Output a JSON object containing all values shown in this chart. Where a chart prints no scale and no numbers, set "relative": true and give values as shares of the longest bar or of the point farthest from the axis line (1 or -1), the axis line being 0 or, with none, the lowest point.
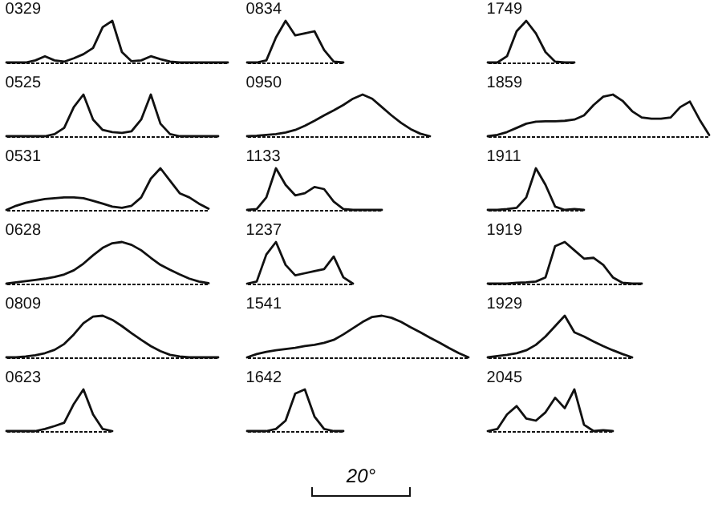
{
  "chart_data": [
    {
      "type": "line",
      "title": "0329",
      "relative": true,
      "tick_labels": false,
      "color": "#111111",
      "categories": [
        null,
        null,
        null,
        null,
        null,
        null,
        null,
        null,
        null,
        null,
        null,
        null,
        null,
        null,
        null,
        null,
        null,
        null,
        null,
        null,
        null,
        null,
        null,
        null
      ],
      "values": [
        0,
        0,
        0,
        0.05,
        0.15,
        0.05,
        0.02,
        0.1,
        0.2,
        0.35,
        0.85,
        1,
        0.25,
        0.03,
        0.05,
        0.15,
        0.08,
        0.02,
        0,
        0,
        0,
        0,
        0,
        0
      ]
    },
    {
      "type": "line",
      "title": "0834",
      "relative": true,
      "tick_labels": false,
      "color": "#111111",
      "categories": [
        null,
        null,
        null,
        null,
        null,
        null,
        null,
        null,
        null,
        null,
        null
      ],
      "values": [
        0,
        0,
        0.05,
        0.6,
        1,
        0.65,
        0.7,
        0.75,
        0.3,
        0.02,
        0
      ]
    },
    {
      "type": "line",
      "title": "1749",
      "relative": true,
      "tick_labels": false,
      "color": "#111111",
      "categories": [
        null,
        null,
        null,
        null,
        null,
        null,
        null,
        null,
        null,
        null
      ],
      "values": [
        0,
        0,
        0.15,
        0.75,
        1,
        0.7,
        0.25,
        0.02,
        0,
        0
      ]
    },
    {
      "type": "line",
      "title": "0525",
      "relative": true,
      "tick_labels": false,
      "color": "#111111",
      "categories": [
        null,
        null,
        null,
        null,
        null,
        null,
        null,
        null,
        null,
        null,
        null,
        null,
        null,
        null,
        null,
        null,
        null,
        null,
        null,
        null,
        null,
        null,
        null
      ],
      "values": [
        0,
        0,
        0,
        0,
        0,
        0.05,
        0.2,
        0.7,
        1,
        0.4,
        0.15,
        0.1,
        0.08,
        0.12,
        0.4,
        1,
        0.3,
        0.05,
        0,
        0,
        0,
        0,
        0
      ]
    },
    {
      "type": "line",
      "title": "0950",
      "relative": true,
      "tick_labels": false,
      "color": "#111111",
      "categories": [
        null,
        null,
        null,
        null,
        null,
        null,
        null,
        null,
        null,
        null,
        null,
        null,
        null,
        null,
        null,
        null,
        null,
        null,
        null,
        null
      ],
      "values": [
        0,
        0.01,
        0.03,
        0.05,
        0.09,
        0.15,
        0.25,
        0.37,
        0.5,
        0.62,
        0.75,
        0.9,
        1,
        0.9,
        0.7,
        0.5,
        0.32,
        0.17,
        0.06,
        0
      ]
    },
    {
      "type": "line",
      "title": "1859",
      "relative": true,
      "tick_labels": false,
      "color": "#111111",
      "categories": [
        null,
        null,
        null,
        null,
        null,
        null,
        null,
        null,
        null,
        null,
        null,
        null,
        null,
        null,
        null,
        null,
        null,
        null,
        null,
        null,
        null,
        null,
        null,
        null
      ],
      "values": [
        0,
        0.03,
        0.1,
        0.2,
        0.3,
        0.35,
        0.36,
        0.36,
        0.37,
        0.4,
        0.5,
        0.75,
        0.95,
        1,
        0.85,
        0.6,
        0.45,
        0.42,
        0.42,
        0.45,
        0.7,
        0.83,
        0.4,
        0.03
      ]
    },
    {
      "type": "line",
      "title": "0531",
      "relative": true,
      "tick_labels": false,
      "color": "#111111",
      "categories": [
        null,
        null,
        null,
        null,
        null,
        null,
        null,
        null,
        null,
        null,
        null,
        null,
        null,
        null,
        null,
        null,
        null,
        null,
        null,
        null,
        null,
        null
      ],
      "values": [
        0,
        0.1,
        0.17,
        0.22,
        0.26,
        0.28,
        0.3,
        0.3,
        0.28,
        0.22,
        0.15,
        0.08,
        0.05,
        0.1,
        0.3,
        0.75,
        1,
        0.7,
        0.4,
        0.3,
        0.15,
        0.03
      ]
    },
    {
      "type": "line",
      "title": "1133",
      "relative": true,
      "tick_labels": false,
      "color": "#111111",
      "categories": [
        null,
        null,
        null,
        null,
        null,
        null,
        null,
        null,
        null,
        null,
        null,
        null,
        null,
        null,
        null
      ],
      "values": [
        0,
        0.02,
        0.3,
        1,
        0.6,
        0.35,
        0.4,
        0.55,
        0.5,
        0.2,
        0.02,
        0,
        0,
        0,
        0
      ]
    },
    {
      "type": "line",
      "title": "1911",
      "relative": true,
      "tick_labels": false,
      "color": "#111111",
      "categories": [
        null,
        null,
        null,
        null,
        null,
        null,
        null,
        null,
        null,
        null,
        null
      ],
      "values": [
        0,
        0,
        0.02,
        0.05,
        0.3,
        1,
        0.6,
        0.08,
        0,
        0.02,
        0
      ]
    },
    {
      "type": "line",
      "title": "0628",
      "relative": true,
      "tick_labels": false,
      "color": "#111111",
      "categories": [
        null,
        null,
        null,
        null,
        null,
        null,
        null,
        null,
        null,
        null,
        null,
        null,
        null,
        null,
        null,
        null,
        null,
        null,
        null,
        null,
        null,
        null
      ],
      "values": [
        0,
        0.03,
        0.06,
        0.09,
        0.12,
        0.16,
        0.22,
        0.32,
        0.48,
        0.68,
        0.86,
        0.97,
        1,
        0.93,
        0.8,
        0.62,
        0.45,
        0.33,
        0.22,
        0.12,
        0.05,
        0.01
      ]
    },
    {
      "type": "line",
      "title": "1237",
      "relative": true,
      "tick_labels": false,
      "color": "#111111",
      "categories": [
        null,
        null,
        null,
        null,
        null,
        null,
        null,
        null,
        null,
        null,
        null,
        null
      ],
      "values": [
        0,
        0.05,
        0.7,
        1,
        0.45,
        0.2,
        0.25,
        0.3,
        0.35,
        0.65,
        0.15,
        0
      ]
    },
    {
      "type": "line",
      "title": "1919",
      "relative": true,
      "tick_labels": false,
      "color": "#111111",
      "categories": [
        null,
        null,
        null,
        null,
        null,
        null,
        null,
        null,
        null,
        null,
        null,
        null,
        null,
        null,
        null,
        null,
        null
      ],
      "values": [
        0,
        0,
        0,
        0.02,
        0.03,
        0.05,
        0.15,
        0.9,
        1,
        0.8,
        0.6,
        0.62,
        0.45,
        0.15,
        0.02,
        0,
        0
      ]
    },
    {
      "type": "line",
      "title": "0809",
      "relative": true,
      "tick_labels": false,
      "color": "#111111",
      "categories": [
        null,
        null,
        null,
        null,
        null,
        null,
        null,
        null,
        null,
        null,
        null,
        null,
        null,
        null,
        null,
        null,
        null,
        null,
        null,
        null,
        null,
        null,
        null
      ],
      "values": [
        0,
        0,
        0.02,
        0.05,
        0.1,
        0.18,
        0.32,
        0.55,
        0.82,
        0.98,
        1,
        0.9,
        0.75,
        0.58,
        0.42,
        0.27,
        0.15,
        0.06,
        0.02,
        0,
        0,
        0,
        0
      ]
    },
    {
      "type": "line",
      "title": "1541",
      "relative": true,
      "tick_labels": false,
      "color": "#111111",
      "categories": [
        null,
        null,
        null,
        null,
        null,
        null,
        null,
        null,
        null,
        null,
        null,
        null,
        null,
        null,
        null,
        null,
        null,
        null,
        null,
        null,
        null,
        null,
        null,
        null
      ],
      "values": [
        0,
        0.08,
        0.13,
        0.17,
        0.2,
        0.23,
        0.27,
        0.3,
        0.35,
        0.42,
        0.55,
        0.7,
        0.85,
        0.97,
        1,
        0.95,
        0.85,
        0.72,
        0.6,
        0.47,
        0.35,
        0.22,
        0.1,
        0
      ]
    },
    {
      "type": "line",
      "title": "1929",
      "relative": true,
      "tick_labels": false,
      "color": "#111111",
      "categories": [
        null,
        null,
        null,
        null,
        null,
        null,
        null,
        null,
        null,
        null,
        null,
        null,
        null,
        null,
        null,
        null
      ],
      "values": [
        0,
        0.03,
        0.06,
        0.1,
        0.17,
        0.3,
        0.5,
        0.75,
        1,
        0.6,
        0.5,
        0.38,
        0.27,
        0.17,
        0.08,
        0
      ]
    },
    {
      "type": "line",
      "title": "0623",
      "relative": true,
      "tick_labels": false,
      "color": "#111111",
      "categories": [
        null,
        null,
        null,
        null,
        null,
        null,
        null,
        null,
        null,
        null,
        null,
        null
      ],
      "values": [
        0,
        0,
        0,
        0,
        0.05,
        0.12,
        0.2,
        0.65,
        1,
        0.4,
        0.05,
        0
      ]
    },
    {
      "type": "line",
      "title": "1642",
      "relative": true,
      "tick_labels": false,
      "color": "#111111",
      "categories": [
        null,
        null,
        null,
        null,
        null,
        null,
        null,
        null,
        null,
        null,
        null
      ],
      "values": [
        0,
        0,
        0,
        0.05,
        0.25,
        0.9,
        1,
        0.35,
        0.05,
        0,
        0
      ]
    },
    {
      "type": "line",
      "title": "2045",
      "relative": true,
      "tick_labels": false,
      "color": "#111111",
      "categories": [
        null,
        null,
        null,
        null,
        null,
        null,
        null,
        null,
        null,
        null,
        null,
        null,
        null,
        null
      ],
      "values": [
        0,
        0.05,
        0.4,
        0.6,
        0.3,
        0.25,
        0.45,
        0.8,
        0.55,
        1,
        0.15,
        0,
        0.02,
        0
      ]
    },
    {
      "type": "other",
      "annotations": [
        "20°"
      ]
    }
  ]
}
